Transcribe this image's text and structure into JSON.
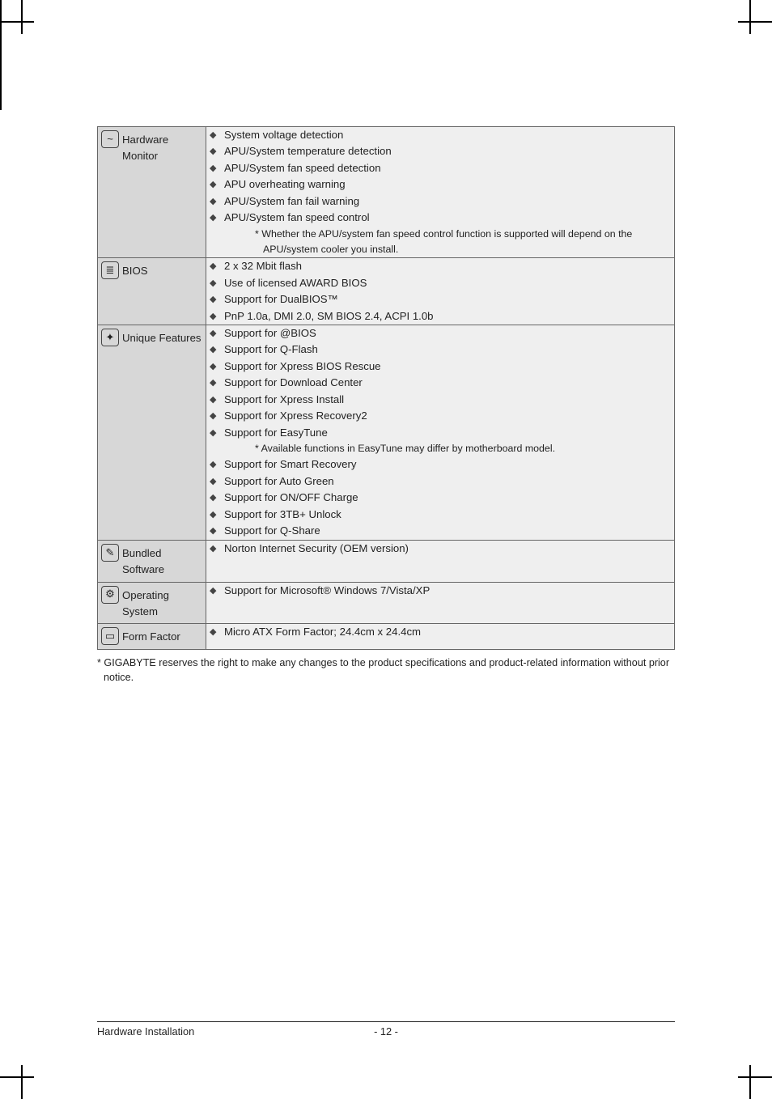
{
  "rows": [
    {
      "icon": "~",
      "label": "Hardware Monitor",
      "items": [
        {
          "text": "System voltage detection"
        },
        {
          "text": "APU/System temperature detection"
        },
        {
          "text": "APU/System fan speed detection"
        },
        {
          "text": "APU overheating warning"
        },
        {
          "text": "APU/System fan fail warning"
        },
        {
          "text": "APU/System fan speed control",
          "sub": "Whether the APU/system fan speed control function is supported will depend on the APU/system cooler you install."
        }
      ]
    },
    {
      "icon": "≣",
      "label": "BIOS",
      "items": [
        {
          "text": "2 x 32 Mbit flash"
        },
        {
          "text": "Use of licensed AWARD BIOS"
        },
        {
          "text": "Support for DualBIOS™"
        },
        {
          "text": "PnP 1.0a, DMI 2.0, SM BIOS 2.4, ACPI 1.0b"
        }
      ]
    },
    {
      "icon": "✦",
      "label": "Unique Features",
      "items": [
        {
          "text": "Support for @BIOS"
        },
        {
          "text": "Support for Q-Flash"
        },
        {
          "text": "Support for Xpress BIOS Rescue"
        },
        {
          "text": "Support for Download Center"
        },
        {
          "text": "Support for Xpress Install"
        },
        {
          "text": "Support for Xpress Recovery2"
        },
        {
          "text": "Support for EasyTune",
          "sub": "Available functions in EasyTune may differ by motherboard model."
        },
        {
          "text": "Support for Smart Recovery"
        },
        {
          "text": "Support for Auto Green"
        },
        {
          "text": "Support for ON/OFF Charge"
        },
        {
          "text": "Support for 3TB+ Unlock"
        },
        {
          "text": "Support for Q-Share"
        }
      ]
    },
    {
      "icon": "✎",
      "label": "Bundled Software",
      "items": [
        {
          "text": "Norton Internet Security (OEM version)"
        }
      ]
    },
    {
      "icon": "⚙",
      "label": "Operating System",
      "items": [
        {
          "text": "Support for Microsoft® Windows 7/Vista/XP"
        }
      ]
    },
    {
      "icon": "▭",
      "label": "Form Factor",
      "items": [
        {
          "text": "Micro ATX Form Factor; 24.4cm x 24.4cm"
        }
      ]
    }
  ],
  "footnote": "* GIGABYTE reserves the right to make any changes to the product specifications and product-related information without prior notice.",
  "footer_left": "Hardware Installation",
  "footer_center": "- 12 -"
}
